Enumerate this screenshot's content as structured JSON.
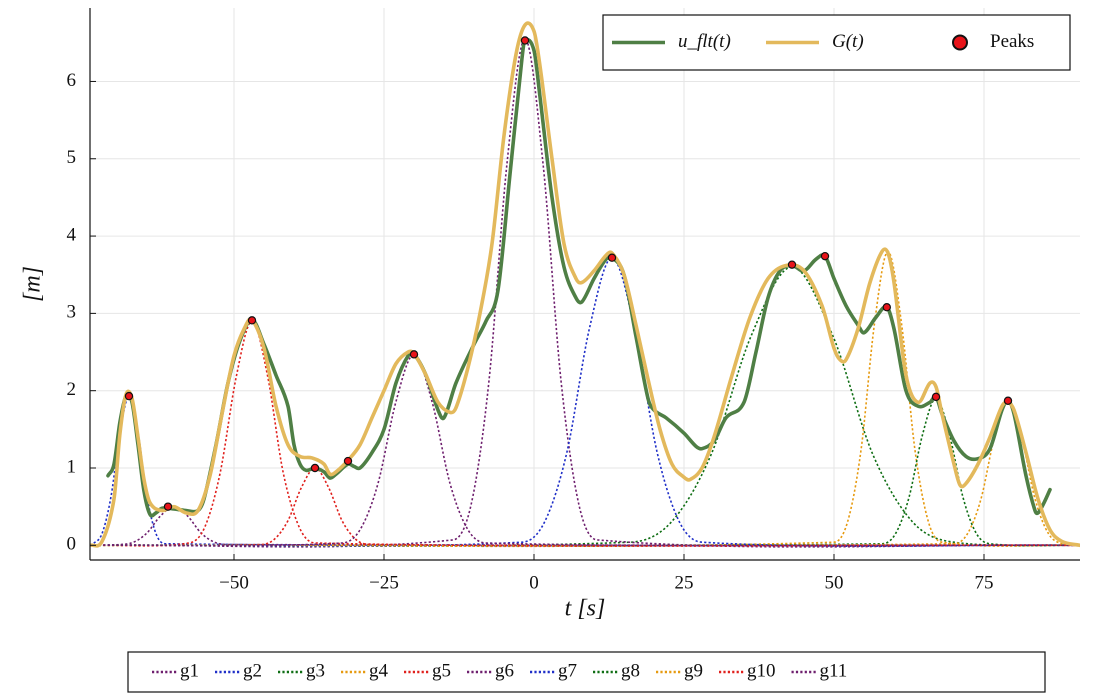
{
  "chart_data": {
    "type": "line",
    "xlabel": "t [s]",
    "ylabel": "[m]",
    "xlim": [
      -74,
      91
    ],
    "ylim": [
      -0.19,
      6.95
    ],
    "xticks": [
      {
        "value": -50,
        "label": "−50"
      },
      {
        "value": -25,
        "label": "−25"
      },
      0,
      25,
      50,
      75
    ],
    "yticks": [
      0,
      1,
      2,
      3,
      4,
      5,
      6
    ],
    "grid": true,
    "legend": "top right",
    "series": [
      {
        "name": "g1",
        "color": "#6e1f6e",
        "style": "dotted",
        "x": [
          -74,
          -69,
          -66.75,
          -64.5,
          -62.25,
          -60,
          -57.75,
          -55.5,
          -53.25,
          -51,
          91
        ],
        "values": [
          0,
          0.01,
          0.04,
          0.16,
          0.38,
          0.5,
          0.38,
          0.16,
          0.04,
          0.01,
          0
        ]
      },
      {
        "name": "g2",
        "color": "#1f2fc8",
        "style": "dotted",
        "x": [
          -74,
          -73.5,
          -72,
          -70.5,
          -69,
          -67.5,
          -66,
          -64.5,
          -63,
          -61.5,
          91
        ],
        "values": [
          0,
          0.02,
          0.15,
          0.63,
          1.46,
          1.93,
          1.46,
          0.63,
          0.15,
          0.02,
          0
        ]
      },
      {
        "name": "g3",
        "color": "#0f6e14",
        "style": "dotted",
        "x": [
          -74,
          16,
          22.75,
          29.5,
          36.25,
          43,
          49.75,
          56.5,
          63.25,
          70,
          91
        ],
        "values": [
          0,
          0.04,
          0.29,
          1.17,
          2.72,
          3.6,
          2.72,
          1.17,
          0.29,
          0.04,
          0
        ]
      },
      {
        "name": "g4",
        "color": "#e69a10",
        "style": "dotted",
        "x": [
          -74,
          50,
          52.25,
          54.5,
          56.75,
          59,
          61.25,
          63.5,
          65.75,
          68,
          91
        ],
        "values": [
          0,
          0.04,
          0.3,
          1.23,
          2.87,
          3.8,
          2.87,
          1.23,
          0.3,
          0.04,
          0
        ]
      },
      {
        "name": "g5",
        "color": "#e0201c",
        "style": "dotted",
        "x": [
          -74,
          -45.5,
          -43.25,
          -41,
          -38.75,
          -36.5,
          -34.25,
          -32,
          -29.75,
          -27.5,
          91
        ],
        "values": [
          0,
          0.01,
          0.08,
          0.32,
          0.75,
          1.0,
          0.75,
          0.32,
          0.08,
          0.01,
          0
        ]
      },
      {
        "name": "g6",
        "color": "#6e1f6e",
        "style": "dotted",
        "x": [
          -74,
          -13.5,
          -10.5,
          -7.5,
          -4.5,
          -1.5,
          1.5,
          4.5,
          7.5,
          10.5,
          91
        ],
        "values": [
          0,
          0.07,
          0.52,
          2.13,
          4.94,
          6.55,
          4.94,
          2.13,
          0.52,
          0.07,
          0
        ]
      },
      {
        "name": "g7",
        "color": "#1f2fc8",
        "style": "dotted",
        "x": [
          -74,
          -2,
          1.75,
          5.5,
          9.25,
          13,
          16.75,
          20.5,
          24.25,
          28,
          91
        ],
        "values": [
          0,
          0.04,
          0.3,
          1.21,
          2.81,
          3.72,
          2.81,
          1.21,
          0.3,
          0.04,
          0
        ]
      },
      {
        "name": "g8",
        "color": "#0f6e14",
        "style": "dotted",
        "x": [
          -74,
          58,
          60.25,
          62.5,
          64.75,
          67,
          69.25,
          71.5,
          73.75,
          76,
          91
        ],
        "values": [
          0,
          0.02,
          0.15,
          0.62,
          1.43,
          1.9,
          1.43,
          0.62,
          0.15,
          0.02,
          0
        ]
      },
      {
        "name": "g9",
        "color": "#e69a10",
        "style": "dotted",
        "x": [
          -74,
          70,
          72.25,
          74.5,
          76.75,
          79,
          81.25,
          83.5,
          85.75,
          88,
          91
        ],
        "values": [
          0,
          0.02,
          0.15,
          0.6,
          1.4,
          1.85,
          1.4,
          0.6,
          0.15,
          0.02,
          0
        ]
      },
      {
        "name": "g10",
        "color": "#e0201c",
        "style": "dotted",
        "x": [
          -74,
          -57.5,
          -54.9,
          -52.3,
          -49.6,
          -47,
          -44.4,
          -41.8,
          -39.1,
          -36.5,
          91
        ],
        "values": [
          0,
          0.03,
          0.23,
          0.94,
          2.19,
          2.9,
          2.19,
          0.94,
          0.23,
          0.03,
          0
        ]
      },
      {
        "name": "g11",
        "color": "#6e1f6e",
        "style": "dotted",
        "x": [
          -74,
          -32,
          -29,
          -26,
          -23,
          -20,
          -17,
          -14,
          -11,
          -8,
          91
        ],
        "values": [
          0,
          0.03,
          0.2,
          0.8,
          1.86,
          2.47,
          1.86,
          0.8,
          0.2,
          0.03,
          0
        ]
      },
      {
        "name": "u_flt(t)",
        "color": "#4f7f45",
        "style": "solid",
        "x": [
          -71,
          -70,
          -69,
          -68,
          -67,
          -66,
          -65,
          -64,
          -63,
          -62,
          -60,
          -58,
          -56,
          -55,
          -53,
          -51,
          -49,
          -47,
          -45,
          -43,
          -41,
          -40,
          -39,
          -38,
          -36.5,
          -35,
          -34,
          -33,
          -31,
          -30,
          -29,
          -27,
          -25,
          -23,
          -21,
          -20,
          -18,
          -16,
          -15,
          -13,
          -10,
          -8,
          -6,
          -4,
          -2,
          -1.5,
          0,
          1,
          3,
          5,
          7,
          8,
          10,
          12,
          13,
          15,
          17,
          19,
          20,
          22,
          25,
          27,
          28,
          30,
          32,
          35,
          37,
          39,
          41,
          43,
          45,
          47,
          48.5,
          50,
          52,
          54,
          55,
          57,
          58.8,
          60,
          62,
          64,
          66,
          67,
          68,
          70,
          72,
          74,
          76,
          78,
          79,
          80,
          82,
          83.5,
          84,
          85,
          86
        ],
        "values": [
          0.9,
          1.05,
          1.6,
          1.93,
          1.85,
          1.3,
          0.7,
          0.4,
          0.42,
          0.48,
          0.47,
          0.45,
          0.45,
          0.6,
          1.3,
          2.1,
          2.65,
          2.92,
          2.6,
          2.2,
          1.8,
          1.3,
          1.05,
          0.97,
          1.0,
          0.95,
          0.87,
          0.92,
          1.05,
          1.02,
          1.0,
          1.2,
          1.5,
          2.1,
          2.45,
          2.47,
          2.2,
          1.75,
          1.65,
          2.1,
          2.6,
          2.9,
          3.3,
          4.8,
          6.3,
          6.53,
          6.4,
          5.8,
          4.5,
          3.6,
          3.2,
          3.15,
          3.45,
          3.7,
          3.72,
          3.5,
          2.7,
          1.9,
          1.75,
          1.65,
          1.45,
          1.28,
          1.25,
          1.35,
          1.65,
          1.85,
          2.5,
          3.2,
          3.55,
          3.62,
          3.55,
          3.7,
          3.74,
          3.45,
          3.1,
          2.85,
          2.75,
          2.95,
          3.08,
          2.8,
          2.0,
          1.8,
          1.85,
          1.92,
          1.7,
          1.35,
          1.15,
          1.12,
          1.25,
          1.75,
          1.87,
          1.7,
          0.9,
          0.45,
          0.42,
          0.55,
          0.72
        ]
      },
      {
        "name": "G(t)",
        "color": "#e3b95c",
        "style": "solid",
        "x": [
          -74,
          -72,
          -70,
          -69,
          -68,
          -67,
          -66,
          -65,
          -64,
          -62,
          -60,
          -58,
          -56,
          -54,
          -52,
          -50,
          -48,
          -47,
          -45,
          -43,
          -41,
          -39,
          -37,
          -35,
          -34,
          -33,
          -31,
          -29,
          -27,
          -25,
          -23,
          -21,
          -20,
          -18,
          -16,
          -14,
          -13,
          -11,
          -9,
          -7,
          -5,
          -3,
          -1.5,
          0,
          1,
          3,
          5,
          7,
          8,
          10,
          12,
          13,
          15,
          17,
          19,
          21,
          23,
          25,
          26,
          28,
          30,
          33,
          36,
          39,
          42,
          45,
          48,
          50,
          51,
          52,
          54,
          56,
          58,
          59,
          60,
          62,
          64,
          66,
          67,
          68,
          70,
          71,
          72,
          74,
          76,
          78,
          79,
          80,
          82,
          84,
          86,
          88,
          91
        ],
        "values": [
          0,
          0.05,
          0.6,
          1.45,
          1.95,
          1.9,
          1.4,
          0.85,
          0.55,
          0.45,
          0.5,
          0.42,
          0.45,
          0.9,
          1.7,
          2.45,
          2.85,
          2.92,
          2.55,
          1.8,
          1.3,
          1.15,
          1.13,
          1.05,
          0.92,
          0.95,
          1.1,
          1.3,
          1.65,
          2.0,
          2.35,
          2.5,
          2.48,
          2.2,
          1.85,
          1.72,
          1.78,
          2.3,
          3.0,
          3.9,
          5.3,
          6.35,
          6.73,
          6.65,
          6.2,
          5.0,
          3.9,
          3.45,
          3.4,
          3.55,
          3.75,
          3.78,
          3.5,
          2.85,
          2.15,
          1.5,
          1.05,
          0.88,
          0.85,
          1.0,
          1.4,
          2.2,
          2.95,
          3.45,
          3.62,
          3.55,
          3.1,
          2.55,
          2.4,
          2.4,
          2.8,
          3.4,
          3.8,
          3.78,
          3.4,
          2.2,
          1.85,
          2.1,
          2.05,
          1.7,
          1.05,
          0.78,
          0.8,
          1.05,
          1.4,
          1.8,
          1.85,
          1.75,
          1.2,
          0.6,
          0.2,
          0.05,
          0
        ]
      },
      {
        "name": "Peaks",
        "color": "#e8141a",
        "style": "markers",
        "x": [
          -67.5,
          -61,
          -47,
          -36.5,
          -31,
          -20,
          -1.5,
          13,
          43,
          48.5,
          58.8,
          67,
          79
        ],
        "values": [
          1.93,
          0.5,
          2.91,
          1.0,
          1.09,
          2.47,
          6.53,
          3.72,
          3.63,
          3.74,
          3.08,
          1.92,
          1.87
        ]
      }
    ]
  }
}
